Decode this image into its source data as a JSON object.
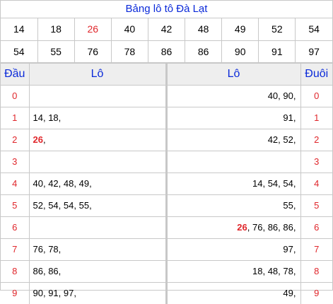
{
  "title": "Bảng lô tô Đà Lạt",
  "numbers": [
    {
      "v": "14",
      "hl": false
    },
    {
      "v": "18",
      "hl": false
    },
    {
      "v": "26",
      "hl": true
    },
    {
      "v": "40",
      "hl": false
    },
    {
      "v": "42",
      "hl": false
    },
    {
      "v": "48",
      "hl": false
    },
    {
      "v": "49",
      "hl": false
    },
    {
      "v": "52",
      "hl": false
    },
    {
      "v": "54",
      "hl": false
    },
    {
      "v": "54",
      "hl": false
    },
    {
      "v": "55",
      "hl": false
    },
    {
      "v": "76",
      "hl": false
    },
    {
      "v": "78",
      "hl": false
    },
    {
      "v": "86",
      "hl": false
    },
    {
      "v": "86",
      "hl": false
    },
    {
      "v": "90",
      "hl": false
    },
    {
      "v": "91",
      "hl": false
    },
    {
      "v": "97",
      "hl": false
    }
  ],
  "headers": {
    "dau": "Đầu",
    "lo_left": "Lô",
    "lo_right": "Lô",
    "duoi": "Đuôi"
  },
  "rows": [
    {
      "dau": "0",
      "left": [],
      "right": [
        {
          "v": "40"
        },
        {
          "v": "90"
        }
      ],
      "duoi": "0"
    },
    {
      "dau": "1",
      "left": [
        {
          "v": "14"
        },
        {
          "v": "18"
        }
      ],
      "right": [
        {
          "v": "91"
        }
      ],
      "duoi": "1"
    },
    {
      "dau": "2",
      "left": [
        {
          "v": "26",
          "hl": true
        }
      ],
      "right": [
        {
          "v": "42"
        },
        {
          "v": "52"
        }
      ],
      "duoi": "2"
    },
    {
      "dau": "3",
      "left": [],
      "right": [],
      "duoi": "3"
    },
    {
      "dau": "4",
      "left": [
        {
          "v": "40"
        },
        {
          "v": "42"
        },
        {
          "v": "48"
        },
        {
          "v": "49"
        }
      ],
      "right": [
        {
          "v": "14"
        },
        {
          "v": "54"
        },
        {
          "v": "54"
        }
      ],
      "duoi": "4"
    },
    {
      "dau": "5",
      "left": [
        {
          "v": "52"
        },
        {
          "v": "54"
        },
        {
          "v": "54"
        },
        {
          "v": "55"
        }
      ],
      "right": [
        {
          "v": "55"
        }
      ],
      "duoi": "5"
    },
    {
      "dau": "6",
      "left": [],
      "right": [
        {
          "v": "26",
          "hl": true
        },
        {
          "v": "76"
        },
        {
          "v": "86"
        },
        {
          "v": "86"
        }
      ],
      "duoi": "6"
    },
    {
      "dau": "7",
      "left": [
        {
          "v": "76"
        },
        {
          "v": "78"
        }
      ],
      "right": [
        {
          "v": "97"
        }
      ],
      "duoi": "7"
    },
    {
      "dau": "8",
      "left": [
        {
          "v": "86"
        },
        {
          "v": "86"
        }
      ],
      "right": [
        {
          "v": "18"
        },
        {
          "v": "48"
        },
        {
          "v": "78"
        }
      ],
      "duoi": "8"
    },
    {
      "dau": "9",
      "left": [
        {
          "v": "90"
        },
        {
          "v": "91"
        },
        {
          "v": "97"
        }
      ],
      "right": [
        {
          "v": "49"
        }
      ],
      "duoi": "9"
    }
  ]
}
